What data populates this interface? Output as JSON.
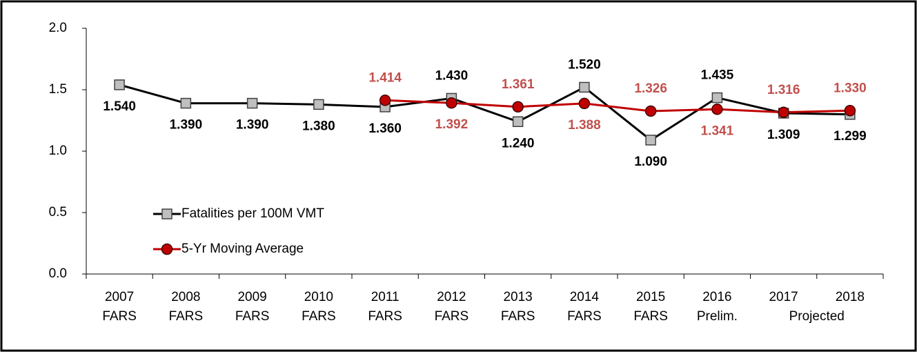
{
  "chart_data": {
    "type": "line",
    "categories": [
      [
        "2007",
        "FARS"
      ],
      [
        "2008",
        "FARS"
      ],
      [
        "2009",
        "FARS"
      ],
      [
        "2010",
        "FARS"
      ],
      [
        "2011",
        "FARS"
      ],
      [
        "2012",
        "FARS"
      ],
      [
        "2013",
        "FARS"
      ],
      [
        "2014",
        "FARS"
      ],
      [
        "2015",
        "FARS"
      ],
      [
        "2016",
        "Prelim."
      ],
      [
        "2017"
      ],
      [
        "2018"
      ]
    ],
    "category_group_label": "Projected",
    "series": [
      {
        "name": "Fatalities per 100M VMT",
        "color": "#000000",
        "marker_color": "#bfbfbf",
        "marker": "square",
        "values": [
          1.54,
          1.39,
          1.39,
          1.38,
          1.36,
          1.43,
          1.24,
          1.52,
          1.09,
          1.435,
          1.309,
          1.299
        ],
        "value_labels": [
          "1.540",
          "1.390",
          "1.390",
          "1.380",
          "1.360",
          "1.430",
          "1.240",
          "1.520",
          "1.090",
          "1.435",
          "1.309",
          "1.299"
        ],
        "label_color": "#000000"
      },
      {
        "name": "5-Yr Moving Average",
        "color": "#c00000",
        "marker_color": "#c00000",
        "marker": "circle",
        "values": [
          null,
          null,
          null,
          null,
          1.414,
          1.392,
          1.361,
          1.388,
          1.326,
          1.341,
          1.316,
          1.33
        ],
        "value_labels": [
          null,
          null,
          null,
          null,
          "1.414",
          "1.392",
          "1.361",
          "1.388",
          "1.326",
          "1.341",
          "1.316",
          "1.330"
        ],
        "label_color": "#c0504d"
      }
    ],
    "ylim": [
      0,
      2
    ],
    "yticks": [
      {
        "value": 0,
        "label": "0.0"
      },
      {
        "value": 0.5,
        "label": "0.5"
      },
      {
        "value": 1,
        "label": "1.0"
      },
      {
        "value": 1.5,
        "label": "1.5"
      },
      {
        "value": 2,
        "label": "2.0"
      }
    ],
    "grid": true
  }
}
